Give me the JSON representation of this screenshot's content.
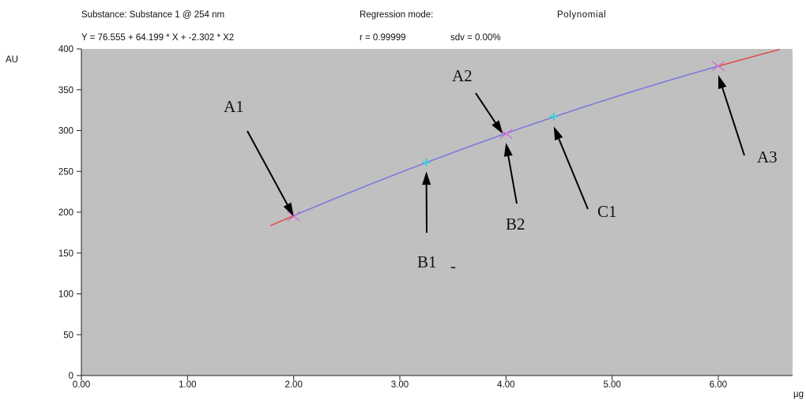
{
  "header": {
    "substance": "Substance: Substance 1 @ 254 nm",
    "regression_label": "Regression mode:",
    "regression_value": "Polynomial",
    "equation": "Y = 76.555 + 64.199 * X + -2.302 * X2",
    "r_value": "r = 0.99999",
    "sdv_value": "sdv = 0.00%"
  },
  "chart_data": {
    "type": "line",
    "ylabel": "AU",
    "xlabel": "µg",
    "xlim": [
      0,
      6.7
    ],
    "ylim": [
      0,
      400
    ],
    "x_ticks": [
      "0.00",
      "1.00",
      "2.00",
      "3.00",
      "4.00",
      "5.00",
      "6.00"
    ],
    "y_ticks": [
      "0",
      "50",
      "100",
      "150",
      "200",
      "250",
      "300",
      "350",
      "400"
    ],
    "background": "#c0c0c0",
    "curve": {
      "coefficients": [
        76.555,
        64.199,
        -2.302
      ],
      "x_min": 1.78,
      "x_max": 6.58,
      "fit_color": "#7b7bdc",
      "extrap_color": "#e05050",
      "fit_range": [
        2.0,
        6.0
      ]
    },
    "standards": [
      {
        "x": 2.0,
        "y": 195
      },
      {
        "x": 4.0,
        "y": 296
      },
      {
        "x": 6.0,
        "y": 379
      }
    ],
    "samples": [
      {
        "x": 3.25,
        "y": 261
      },
      {
        "x": 4.45,
        "y": 317
      }
    ],
    "standard_color": "#d070d0",
    "sample_color": "#30d0e0",
    "annotations": [
      {
        "text": "A1",
        "target_x": 2.0,
        "target_y": 195
      },
      {
        "text": "A2",
        "target_x": 3.97,
        "target_y": 296
      },
      {
        "text": "B2",
        "target_x": 4.0,
        "target_y": 285
      },
      {
        "text": "B1",
        "target_x": 3.25,
        "target_y": 250
      },
      {
        "text": "C1",
        "target_x": 4.45,
        "target_y": 305
      },
      {
        "text": "A3",
        "target_x": 6.0,
        "target_y": 368
      }
    ],
    "stray_mark": "-"
  }
}
